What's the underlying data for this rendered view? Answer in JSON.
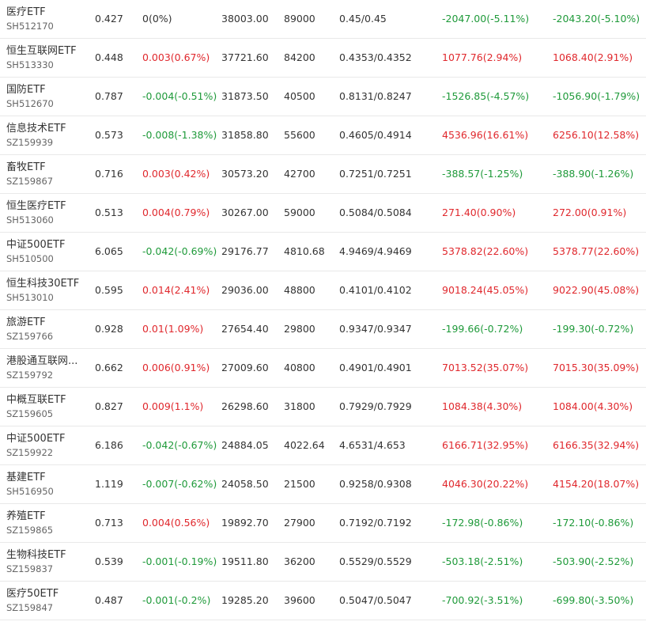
{
  "colors": {
    "up": "#e0282d",
    "down": "#1f9a3a",
    "flat": "#333333"
  },
  "rows": [
    {
      "name": "医疗ETF",
      "code": "SH512170",
      "price": "0.427",
      "change": "0(0%)",
      "change_dir": "flat",
      "amount": "38003.00",
      "volume": "89000",
      "bid_ask": "0.45/0.45",
      "pnl1": "-2047.00(-5.11%)",
      "pnl1_dir": "down",
      "pnl2": "-2043.20(-5.10%)",
      "pnl2_dir": "down"
    },
    {
      "name": "恒生互联网ETF",
      "code": "SH513330",
      "price": "0.448",
      "change": "0.003(0.67%)",
      "change_dir": "up",
      "amount": "37721.60",
      "volume": "84200",
      "bid_ask": "0.4353/0.4352",
      "pnl1": "1077.76(2.94%)",
      "pnl1_dir": "up",
      "pnl2": "1068.40(2.91%)",
      "pnl2_dir": "up"
    },
    {
      "name": "国防ETF",
      "code": "SH512670",
      "price": "0.787",
      "change": "-0.004(-0.51%)",
      "change_dir": "down",
      "amount": "31873.50",
      "volume": "40500",
      "bid_ask": "0.8131/0.8247",
      "pnl1": "-1526.85(-4.57%)",
      "pnl1_dir": "down",
      "pnl2": "-1056.90(-1.79%)",
      "pnl2_dir": "down"
    },
    {
      "name": "信息技术ETF",
      "code": "SZ159939",
      "price": "0.573",
      "change": "-0.008(-1.38%)",
      "change_dir": "down",
      "amount": "31858.80",
      "volume": "55600",
      "bid_ask": "0.4605/0.4914",
      "pnl1": "4536.96(16.61%)",
      "pnl1_dir": "up",
      "pnl2": "6256.10(12.58%)",
      "pnl2_dir": "up"
    },
    {
      "name": "畜牧ETF",
      "code": "SZ159867",
      "price": "0.716",
      "change": "0.003(0.42%)",
      "change_dir": "up",
      "amount": "30573.20",
      "volume": "42700",
      "bid_ask": "0.7251/0.7251",
      "pnl1": "-388.57(-1.25%)",
      "pnl1_dir": "down",
      "pnl2": "-388.90(-1.26%)",
      "pnl2_dir": "down"
    },
    {
      "name": "恒生医疗ETF",
      "code": "SH513060",
      "price": "0.513",
      "change": "0.004(0.79%)",
      "change_dir": "up",
      "amount": "30267.00",
      "volume": "59000",
      "bid_ask": "0.5084/0.5084",
      "pnl1": "271.40(0.90%)",
      "pnl1_dir": "up",
      "pnl2": "272.00(0.91%)",
      "pnl2_dir": "up"
    },
    {
      "name": "中证500ETF",
      "code": "SH510500",
      "price": "6.065",
      "change": "-0.042(-0.69%)",
      "change_dir": "down",
      "amount": "29176.77",
      "volume": "4810.68",
      "bid_ask": "4.9469/4.9469",
      "pnl1": "5378.82(22.60%)",
      "pnl1_dir": "up",
      "pnl2": "5378.77(22.60%)",
      "pnl2_dir": "up"
    },
    {
      "name": "恒生科技30ETF",
      "code": "SH513010",
      "price": "0.595",
      "change": "0.014(2.41%)",
      "change_dir": "up",
      "amount": "29036.00",
      "volume": "48800",
      "bid_ask": "0.4101/0.4102",
      "pnl1": "9018.24(45.05%)",
      "pnl1_dir": "up",
      "pnl2": "9022.90(45.08%)",
      "pnl2_dir": "up"
    },
    {
      "name": "旅游ETF",
      "code": "SZ159766",
      "price": "0.928",
      "change": "0.01(1.09%)",
      "change_dir": "up",
      "amount": "27654.40",
      "volume": "29800",
      "bid_ask": "0.9347/0.9347",
      "pnl1": "-199.66(-0.72%)",
      "pnl1_dir": "down",
      "pnl2": "-199.30(-0.72%)",
      "pnl2_dir": "down"
    },
    {
      "name": "港股通互联网...",
      "code": "SZ159792",
      "price": "0.662",
      "change": "0.006(0.91%)",
      "change_dir": "up",
      "amount": "27009.60",
      "volume": "40800",
      "bid_ask": "0.4901/0.4901",
      "pnl1": "7013.52(35.07%)",
      "pnl1_dir": "up",
      "pnl2": "7015.30(35.09%)",
      "pnl2_dir": "up"
    },
    {
      "name": "中概互联ETF",
      "code": "SZ159605",
      "price": "0.827",
      "change": "0.009(1.1%)",
      "change_dir": "up",
      "amount": "26298.60",
      "volume": "31800",
      "bid_ask": "0.7929/0.7929",
      "pnl1": "1084.38(4.30%)",
      "pnl1_dir": "up",
      "pnl2": "1084.00(4.30%)",
      "pnl2_dir": "up"
    },
    {
      "name": "中证500ETF",
      "code": "SZ159922",
      "price": "6.186",
      "change": "-0.042(-0.67%)",
      "change_dir": "down",
      "amount": "24884.05",
      "volume": "4022.64",
      "bid_ask": "4.6531/4.653",
      "pnl1": "6166.71(32.95%)",
      "pnl1_dir": "up",
      "pnl2": "6166.35(32.94%)",
      "pnl2_dir": "up"
    },
    {
      "name": "基建ETF",
      "code": "SH516950",
      "price": "1.119",
      "change": "-0.007(-0.62%)",
      "change_dir": "down",
      "amount": "24058.50",
      "volume": "21500",
      "bid_ask": "0.9258/0.9308",
      "pnl1": "4046.30(20.22%)",
      "pnl1_dir": "up",
      "pnl2": "4154.20(18.07%)",
      "pnl2_dir": "up"
    },
    {
      "name": "养殖ETF",
      "code": "SZ159865",
      "price": "0.713",
      "change": "0.004(0.56%)",
      "change_dir": "up",
      "amount": "19892.70",
      "volume": "27900",
      "bid_ask": "0.7192/0.7192",
      "pnl1": "-172.98(-0.86%)",
      "pnl1_dir": "down",
      "pnl2": "-172.10(-0.86%)",
      "pnl2_dir": "down"
    },
    {
      "name": "生物科技ETF",
      "code": "SZ159837",
      "price": "0.539",
      "change": "-0.001(-0.19%)",
      "change_dir": "down",
      "amount": "19511.80",
      "volume": "36200",
      "bid_ask": "0.5529/0.5529",
      "pnl1": "-503.18(-2.51%)",
      "pnl1_dir": "down",
      "pnl2": "-503.90(-2.52%)",
      "pnl2_dir": "down"
    },
    {
      "name": "医疗50ETF",
      "code": "SZ159847",
      "price": "0.487",
      "change": "-0.001(-0.2%)",
      "change_dir": "down",
      "amount": "19285.20",
      "volume": "39600",
      "bid_ask": "0.5047/0.5047",
      "pnl1": "-700.92(-3.51%)",
      "pnl1_dir": "down",
      "pnl2": "-699.80(-3.50%)",
      "pnl2_dir": "down"
    }
  ]
}
